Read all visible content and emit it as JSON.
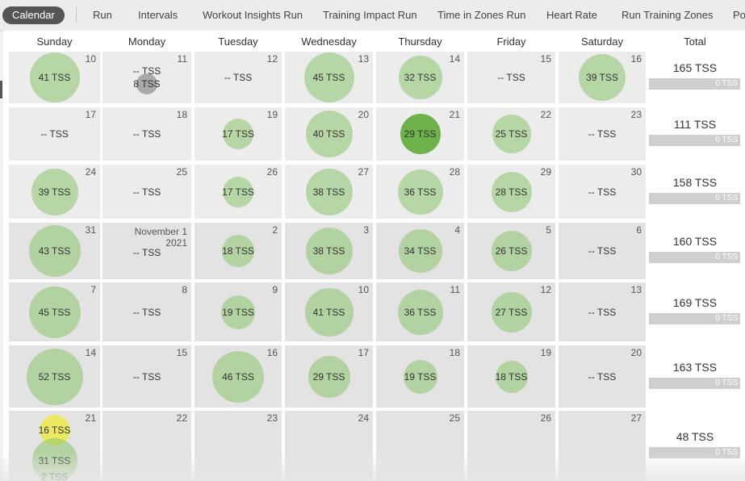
{
  "tabs": [
    {
      "label": "Calendar",
      "active": true
    },
    {
      "label": "Run"
    },
    {
      "label": "Intervals"
    },
    {
      "label": "Workout Insights Run"
    },
    {
      "label": "Training Impact Run"
    },
    {
      "label": "Time in Zones Run"
    },
    {
      "label": "Heart Rate"
    },
    {
      "label": "Run Training Zones"
    },
    {
      "label": "Po"
    }
  ],
  "days": [
    "Sunday",
    "Monday",
    "Tuesday",
    "Wednesday",
    "Thursday",
    "Friday",
    "Saturday"
  ],
  "total_header": "Total",
  "weeks": [
    {
      "total": "165 TSS",
      "bar": "0 TSS",
      "cells": [
        {
          "day": "10",
          "items": [
            {
              "text": "41 TSS",
              "d": 62
            }
          ]
        },
        {
          "day": "11",
          "items": [
            {
              "text": "-- TSS"
            },
            {
              "text": "8 TSS",
              "d": 26,
              "style": "grey"
            }
          ]
        },
        {
          "day": "12",
          "items": [
            {
              "text": "-- TSS"
            }
          ]
        },
        {
          "day": "13",
          "items": [
            {
              "text": "45 TSS",
              "d": 62
            }
          ]
        },
        {
          "day": "14",
          "items": [
            {
              "text": "32 TSS",
              "d": 54
            }
          ]
        },
        {
          "day": "15",
          "items": [
            {
              "text": "-- TSS"
            }
          ]
        },
        {
          "day": "16",
          "items": [
            {
              "text": "39 TSS",
              "d": 58
            }
          ]
        }
      ]
    },
    {
      "total": "111 TSS",
      "bar": "0 TSS",
      "cells": [
        {
          "day": "17",
          "items": [
            {
              "text": "-- TSS"
            }
          ]
        },
        {
          "day": "18",
          "items": [
            {
              "text": "-- TSS"
            }
          ]
        },
        {
          "day": "19",
          "items": [
            {
              "text": "17 TSS",
              "d": 38
            }
          ]
        },
        {
          "day": "20",
          "items": [
            {
              "text": "40 TSS",
              "d": 58
            }
          ]
        },
        {
          "day": "21",
          "items": [
            {
              "text": "29 TSS",
              "d": 50,
              "style": "dark"
            }
          ]
        },
        {
          "day": "22",
          "items": [
            {
              "text": "25 TSS",
              "d": 48
            }
          ]
        },
        {
          "day": "23",
          "items": [
            {
              "text": "-- TSS"
            }
          ]
        }
      ]
    },
    {
      "total": "158 TSS",
      "bar": "0 TSS",
      "cells": [
        {
          "day": "24",
          "items": [
            {
              "text": "39 TSS",
              "d": 58
            }
          ]
        },
        {
          "day": "25",
          "items": [
            {
              "text": "-- TSS"
            }
          ]
        },
        {
          "day": "26",
          "items": [
            {
              "text": "17 TSS",
              "d": 38
            }
          ]
        },
        {
          "day": "27",
          "items": [
            {
              "text": "38 TSS",
              "d": 58
            }
          ]
        },
        {
          "day": "28",
          "items": [
            {
              "text": "36 TSS",
              "d": 56
            }
          ]
        },
        {
          "day": "29",
          "items": [
            {
              "text": "28 TSS",
              "d": 50
            }
          ]
        },
        {
          "day": "30",
          "items": [
            {
              "text": "-- TSS"
            }
          ]
        }
      ]
    },
    {
      "total": "160 TSS",
      "bar": "0 TSS",
      "cells": [
        {
          "day": "31",
          "items": [
            {
              "text": "43 TSS",
              "d": 64
            }
          ]
        },
        {
          "day": "",
          "month": "November 1",
          "year": "2021",
          "items": [
            {
              "text": "-- TSS"
            }
          ]
        },
        {
          "day": "2",
          "items": [
            {
              "text": "18 TSS",
              "d": 40
            }
          ]
        },
        {
          "day": "3",
          "items": [
            {
              "text": "38 TSS",
              "d": 58
            }
          ]
        },
        {
          "day": "4",
          "items": [
            {
              "text": "34 TSS",
              "d": 54
            }
          ]
        },
        {
          "day": "5",
          "items": [
            {
              "text": "26 TSS",
              "d": 50
            }
          ]
        },
        {
          "day": "6",
          "items": [
            {
              "text": "-- TSS"
            }
          ]
        }
      ]
    },
    {
      "total": "169 TSS",
      "bar": "0 TSS",
      "cells": [
        {
          "day": "7",
          "items": [
            {
              "text": "45 TSS",
              "d": 64
            }
          ]
        },
        {
          "day": "8",
          "items": [
            {
              "text": "-- TSS"
            }
          ]
        },
        {
          "day": "9",
          "items": [
            {
              "text": "19 TSS",
              "d": 42
            }
          ]
        },
        {
          "day": "10",
          "items": [
            {
              "text": "41 TSS",
              "d": 60
            }
          ]
        },
        {
          "day": "11",
          "items": [
            {
              "text": "36 TSS",
              "d": 56
            }
          ]
        },
        {
          "day": "12",
          "items": [
            {
              "text": "27 TSS",
              "d": 50
            }
          ]
        },
        {
          "day": "13",
          "items": [
            {
              "text": "-- TSS"
            }
          ]
        }
      ]
    },
    {
      "total": "163 TSS",
      "bar": "0 TSS",
      "cells": [
        {
          "day": "14",
          "items": [
            {
              "text": "52 TSS",
              "d": 70
            }
          ]
        },
        {
          "day": "15",
          "items": [
            {
              "text": "-- TSS"
            }
          ]
        },
        {
          "day": "16",
          "items": [
            {
              "text": "46 TSS",
              "d": 64
            }
          ]
        },
        {
          "day": "17",
          "items": [
            {
              "text": "29 TSS",
              "d": 52
            }
          ]
        },
        {
          "day": "18",
          "items": [
            {
              "text": "19 TSS",
              "d": 42
            }
          ]
        },
        {
          "day": "19",
          "items": [
            {
              "text": "18 TSS",
              "d": 40
            }
          ]
        },
        {
          "day": "20",
          "items": [
            {
              "text": "-- TSS"
            }
          ]
        }
      ]
    },
    {
      "total": "48 TSS",
      "bar": "0 TSS",
      "cells": [
        {
          "day": "21",
          "items": [
            {
              "text": "16 TSS",
              "d": 38,
              "style": "yellow"
            },
            {
              "text": "31 TSS",
              "d": 56
            },
            {
              "text": "2 TSS"
            }
          ]
        },
        {
          "day": "22",
          "items": []
        },
        {
          "day": "23",
          "items": []
        },
        {
          "day": "24",
          "items": []
        },
        {
          "day": "25",
          "items": []
        },
        {
          "day": "26",
          "items": []
        },
        {
          "day": "27",
          "items": []
        }
      ]
    }
  ]
}
